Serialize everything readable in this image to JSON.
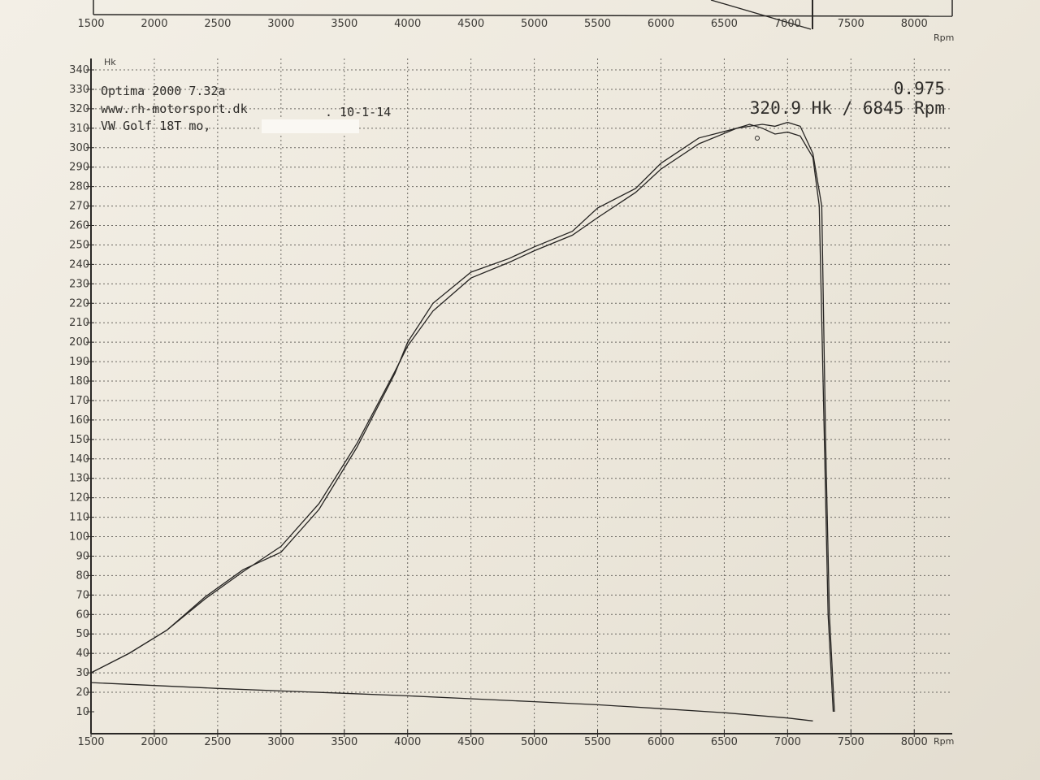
{
  "header": {
    "line1": "Optima 2000 7.32a",
    "line2": "www.rh-motorsport.dk",
    "date": ". 10-1-14",
    "line3": "VW Golf 18T mo,",
    "factor": "0.975",
    "peak": "320.9 Hk / 6845 Rpm"
  },
  "top_panel": {
    "x_ticks": [
      "1500",
      "2000",
      "2500",
      "3000",
      "3500",
      "4000",
      "4500",
      "5000",
      "5500",
      "6000",
      "6500",
      "7000",
      "7500",
      "8000"
    ],
    "x_unit": "Rpm"
  },
  "chart_data": {
    "type": "line",
    "y_unit_label": "Hk",
    "x_unit_label": "Rpm",
    "xlim": [
      1500,
      8300
    ],
    "ylim": [
      10,
      340
    ],
    "grid": true,
    "x_ticks": [
      "1500",
      "2000",
      "2500",
      "3000",
      "3500",
      "4000",
      "4500",
      "5000",
      "5500",
      "6000",
      "6500",
      "7000",
      "7500",
      "8000"
    ],
    "y_ticks": [
      "10",
      "20",
      "30",
      "40",
      "50",
      "60",
      "70",
      "80",
      "90",
      "100",
      "110",
      "120",
      "130",
      "140",
      "150",
      "160",
      "170",
      "180",
      "190",
      "200",
      "210",
      "220",
      "230",
      "240",
      "250",
      "260",
      "270",
      "280",
      "290",
      "300",
      "310",
      "320",
      "330",
      "340"
    ],
    "series": [
      {
        "x": [
          1500,
          1800,
          2100,
          2400,
          2700,
          3000,
          3300,
          3600,
          3900,
          4000,
          4200,
          4500,
          4800,
          5000,
          5300,
          5500,
          5800,
          6000,
          6300,
          6600,
          6700,
          6800,
          6900,
          7000,
          7100,
          7200,
          7270,
          7300,
          7330,
          7370
        ],
        "y": [
          30,
          40,
          52,
          68,
          82,
          95,
          117,
          148,
          185,
          198,
          216,
          233,
          241,
          247,
          255,
          264,
          277,
          289,
          302,
          310,
          311,
          312,
          311,
          313,
          311,
          297,
          270,
          150,
          60,
          10
        ]
      },
      {
        "x": [
          1500,
          1800,
          2100,
          2400,
          2700,
          3000,
          3300,
          3600,
          3900,
          4000,
          4200,
          4500,
          4800,
          5000,
          5300,
          5500,
          5800,
          6000,
          6300,
          6600,
          6700,
          6800,
          6900,
          7000,
          7100,
          7200,
          7250,
          7290,
          7320,
          7360
        ],
        "y": [
          30,
          40,
          52,
          69,
          83,
          92,
          114,
          146,
          184,
          200,
          220,
          236,
          243,
          249,
          257,
          269,
          279,
          292,
          305,
          310,
          312,
          310,
          307,
          308,
          306,
          295,
          270,
          150,
          60,
          10
        ]
      },
      {
        "x": [
          1500,
          2000,
          2500,
          3000,
          3500,
          4000,
          4500,
          5000,
          5500,
          6000,
          6500,
          7000,
          7200
        ],
        "y": [
          25,
          23.5,
          22,
          20.7,
          19.5,
          18.2,
          16.7,
          15.2,
          13.6,
          11.6,
          9.5,
          6.8,
          5.3
        ]
      }
    ]
  }
}
